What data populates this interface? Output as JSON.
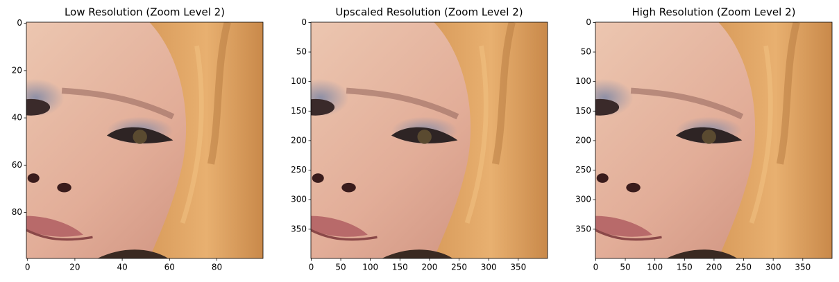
{
  "chart_data": [
    {
      "type": "image",
      "title": "Low Resolution (Zoom Level 2)",
      "xlim": [
        -0.5,
        99.5
      ],
      "ylim": [
        99.5,
        -0.5
      ],
      "xticks": [
        0,
        20,
        40,
        60,
        80
      ],
      "yticks": [
        0,
        20,
        40,
        60,
        80
      ]
    },
    {
      "type": "image",
      "title": "Upscaled Resolution (Zoom Level 2)",
      "xlim": [
        -0.5,
        399.5
      ],
      "ylim": [
        399.5,
        -0.5
      ],
      "xticks": [
        0,
        50,
        100,
        150,
        200,
        250,
        300,
        350
      ],
      "yticks": [
        0,
        50,
        100,
        150,
        200,
        250,
        300,
        350
      ]
    },
    {
      "type": "image",
      "title": "High Resolution (Zoom Level 2)",
      "xlim": [
        -0.5,
        399.5
      ],
      "ylim": [
        399.5,
        -0.5
      ],
      "xticks": [
        0,
        50,
        100,
        150,
        200,
        250,
        300,
        350
      ],
      "yticks": [
        0,
        50,
        100,
        150,
        200,
        250,
        300,
        350
      ]
    }
  ]
}
